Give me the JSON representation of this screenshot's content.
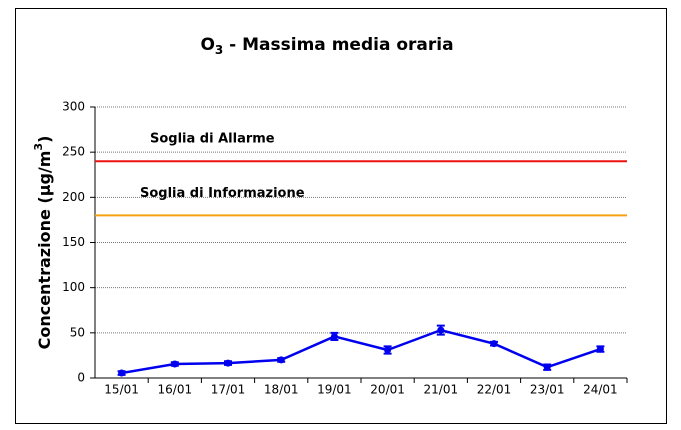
{
  "chart_data": {
    "type": "line",
    "title": [
      "O",
      "3",
      " - Massima media oraria"
    ],
    "y_label": [
      "Concentrazione (µg/m",
      "3",
      ")"
    ],
    "categories": [
      "15/01",
      "16/01",
      "17/01",
      "18/01",
      "19/01",
      "20/01",
      "21/01",
      "22/01",
      "23/01",
      "24/01"
    ],
    "series": [
      {
        "name": null,
        "color": "#0000ee",
        "values": [
          5.5,
          15.5,
          16.5,
          20,
          46,
          31,
          53,
          38,
          12,
          32
        ],
        "errors": [
          2,
          2,
          2,
          2,
          4,
          4,
          5,
          2,
          3,
          3
        ]
      }
    ],
    "thresholds": [
      {
        "name": "Soglia di Allarme",
        "value": 240,
        "color": "#ee1111"
      },
      {
        "name": "Soglia di Informazione",
        "value": 180,
        "color": "#f5a010"
      }
    ],
    "ylim": [
      0,
      300
    ],
    "yticks": [
      0,
      50,
      100,
      150,
      200,
      250,
      300
    ],
    "grid": true
  }
}
